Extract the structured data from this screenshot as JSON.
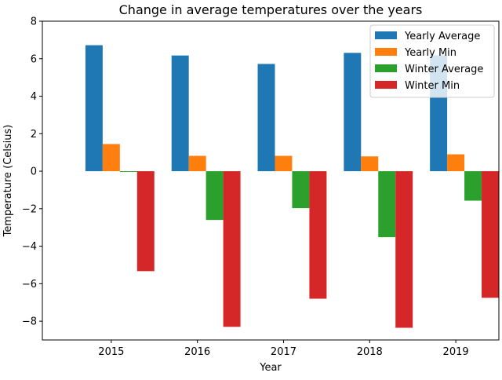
{
  "chart_data": {
    "type": "bar",
    "title": "Change in average temperatures over the years",
    "xlabel": "Year",
    "ylabel": "Temperature (Celsius)",
    "categories": [
      "2015",
      "2016",
      "2017",
      "2018",
      "2019"
    ],
    "series": [
      {
        "name": "Yearly Average",
        "color": "#1f77b4",
        "values": [
          6.72,
          6.17,
          5.72,
          6.31,
          6.18
        ]
      },
      {
        "name": "Yearly Min",
        "color": "#ff7f0e",
        "values": [
          1.45,
          0.82,
          0.82,
          0.79,
          0.9
        ]
      },
      {
        "name": "Winter Average",
        "color": "#2ca02c",
        "values": [
          -0.04,
          -2.6,
          -1.97,
          -3.52,
          -1.57
        ]
      },
      {
        "name": "Winter Min",
        "color": "#d62728",
        "values": [
          -5.33,
          -8.3,
          -6.8,
          -8.35,
          -6.75
        ]
      }
    ],
    "ylim": [
      -9,
      8
    ],
    "yticks": [
      -8,
      -6,
      -4,
      -2,
      0,
      2,
      4,
      6,
      8
    ],
    "ytick_labels": [
      "−8",
      "−6",
      "−4",
      "−2",
      "0",
      "2",
      "4",
      "6",
      "8"
    ],
    "grid": false,
    "legend_position": "top-right"
  }
}
